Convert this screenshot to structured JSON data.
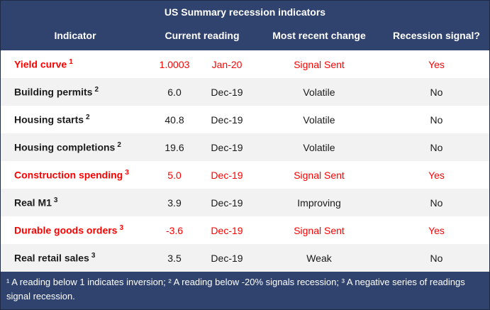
{
  "title": "US Summary recession indicators",
  "colors": {
    "navy": "#2F436E",
    "border": "#1F2A44",
    "alert_red": "#FF0000",
    "text": "#1A1A1A",
    "row_alt": "#F2F2F2"
  },
  "table": {
    "headers": [
      "Indicator",
      "Current reading",
      "Most recent change",
      "Recession signal?"
    ],
    "rows": [
      {
        "indicator": "Yield curve",
        "footnote_marker": "1",
        "value": "1.0003",
        "date": "Jan-20",
        "change": "Signal Sent",
        "signal": "Yes",
        "alert": true
      },
      {
        "indicator": "Building permits",
        "footnote_marker": "2",
        "value": "6.0",
        "date": "Dec-19",
        "change": "Volatile",
        "signal": "No",
        "alert": false
      },
      {
        "indicator": "Housing starts",
        "footnote_marker": "2",
        "value": "40.8",
        "date": "Dec-19",
        "change": "Volatile",
        "signal": "No",
        "alert": false
      },
      {
        "indicator": "Housing completions",
        "footnote_marker": "2",
        "value": "19.6",
        "date": "Dec-19",
        "change": "Volatile",
        "signal": "No",
        "alert": false
      },
      {
        "indicator": "Construction spending",
        "footnote_marker": "3",
        "value": "5.0",
        "date": "Dec-19",
        "change": "Signal Sent",
        "signal": "Yes",
        "alert": true
      },
      {
        "indicator": "Real M1",
        "footnote_marker": "3",
        "value": "3.9",
        "date": "Dec-19",
        "change": "Improving",
        "signal": "No",
        "alert": false
      },
      {
        "indicator": "Durable goods orders",
        "footnote_marker": "3",
        "value": "-3.6",
        "date": "Dec-19",
        "change": "Signal Sent",
        "signal": "Yes",
        "alert": true
      },
      {
        "indicator": "Real retail sales",
        "footnote_marker": "3",
        "value": "3.5",
        "date": "Dec-19",
        "change": "Weak",
        "signal": "No",
        "alert": false
      }
    ],
    "footnote": "¹ A reading below 1 indicates inversion; ² A reading below -20% signals recession; ³ A negative series of readings signal recession."
  },
  "chart_data": {
    "type": "table",
    "title": "US Summary recession indicators",
    "columns": [
      "Indicator",
      "Current reading (value)",
      "Current reading (date)",
      "Most recent change",
      "Recession signal?"
    ],
    "rows": [
      [
        "Yield curve",
        1.0003,
        "Jan-20",
        "Signal Sent",
        "Yes"
      ],
      [
        "Building permits",
        6.0,
        "Dec-19",
        "Volatile",
        "No"
      ],
      [
        "Housing starts",
        40.8,
        "Dec-19",
        "Volatile",
        "No"
      ],
      [
        "Housing completions",
        19.6,
        "Dec-19",
        "Volatile",
        "No"
      ],
      [
        "Construction spending",
        5.0,
        "Dec-19",
        "Signal Sent",
        "Yes"
      ],
      [
        "Real M1",
        3.9,
        "Dec-19",
        "Improving",
        "No"
      ],
      [
        "Durable goods orders",
        -3.6,
        "Dec-19",
        "Signal Sent",
        "Yes"
      ],
      [
        "Real retail sales",
        3.5,
        "Dec-19",
        "Weak",
        "No"
      ]
    ],
    "footnotes": [
      "1: A reading below 1 indicates inversion",
      "2: A reading below -20% signals recession",
      "3: A negative series of readings signal recession"
    ],
    "highlighted_rows": [
      "Yield curve",
      "Construction spending",
      "Durable goods orders"
    ]
  }
}
